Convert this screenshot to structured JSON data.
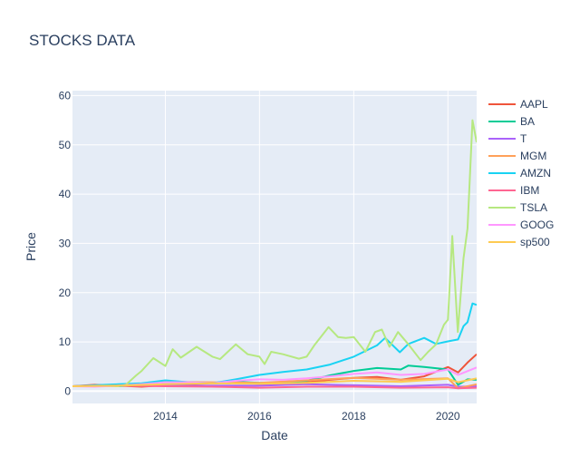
{
  "chart_data": {
    "type": "line",
    "title": "STOCKS DATA",
    "xlabel": "Date",
    "ylabel": "Price",
    "xlim": [
      "2012-01-12",
      "2020-08-11"
    ],
    "ylim": [
      -2.5,
      61
    ],
    "x_ticks": [
      "2014",
      "2016",
      "2018",
      "2020"
    ],
    "y_ticks": [
      0,
      10,
      20,
      30,
      40,
      50,
      60
    ],
    "grid": true,
    "legend_position": "right",
    "background": "#e5ecf6",
    "series": [
      {
        "name": "AAPL",
        "color": "#ef553b",
        "x": [
          "2012-01-12",
          "2012-07-01",
          "2013-01-01",
          "2013-07-01",
          "2014-01-01",
          "2014-07-01",
          "2015-01-01",
          "2015-07-01",
          "2016-01-01",
          "2016-07-01",
          "2017-01-01",
          "2017-07-01",
          "2018-01-01",
          "2018-07-01",
          "2019-01-01",
          "2019-07-01",
          "2020-01-01",
          "2020-03-20",
          "2020-06-01",
          "2020-08-11"
        ],
        "y": [
          1.0,
          1.3,
          1.1,
          0.9,
          1.2,
          1.4,
          1.6,
          1.7,
          1.5,
          1.4,
          1.8,
          2.3,
          2.7,
          2.9,
          2.3,
          3.0,
          4.9,
          3.8,
          5.8,
          7.5
        ]
      },
      {
        "name": "BA",
        "color": "#00cc96",
        "x": [
          "2012-01-12",
          "2012-07-01",
          "2013-01-01",
          "2013-07-01",
          "2014-01-01",
          "2014-07-01",
          "2015-01-01",
          "2015-07-01",
          "2016-01-01",
          "2016-07-01",
          "2017-01-01",
          "2017-07-01",
          "2018-01-01",
          "2018-07-01",
          "2019-01-01",
          "2019-03-01",
          "2019-07-01",
          "2020-01-01",
          "2020-03-20",
          "2020-06-01",
          "2020-08-11"
        ],
        "y": [
          1.0,
          1.0,
          1.0,
          1.3,
          1.8,
          1.7,
          1.7,
          1.9,
          1.7,
          1.8,
          2.1,
          3.2,
          4.1,
          4.7,
          4.4,
          5.2,
          4.9,
          4.4,
          1.3,
          2.4,
          2.3
        ]
      },
      {
        "name": "T",
        "color": "#ab63fa",
        "x": [
          "2012-01-12",
          "2013-01-01",
          "2014-01-01",
          "2015-01-01",
          "2016-01-01",
          "2017-01-01",
          "2018-01-01",
          "2019-01-01",
          "2020-01-01",
          "2020-03-20",
          "2020-08-11"
        ],
        "y": [
          1.0,
          1.1,
          1.1,
          1.1,
          1.1,
          1.4,
          1.2,
          1.0,
          1.3,
          0.9,
          1.0
        ]
      },
      {
        "name": "MGM",
        "color": "#ffa15a",
        "x": [
          "2012-01-12",
          "2013-01-01",
          "2014-01-01",
          "2015-01-01",
          "2016-01-01",
          "2017-01-01",
          "2018-01-01",
          "2019-01-01",
          "2020-01-01",
          "2020-03-20",
          "2020-08-11"
        ],
        "y": [
          1.0,
          1.1,
          1.9,
          1.8,
          1.7,
          2.2,
          2.7,
          2.3,
          2.6,
          0.6,
          1.4
        ]
      },
      {
        "name": "AMZN",
        "color": "#19d3f3",
        "x": [
          "2012-01-12",
          "2012-07-01",
          "2013-01-01",
          "2013-07-01",
          "2014-01-01",
          "2014-07-01",
          "2015-01-01",
          "2015-07-01",
          "2016-01-01",
          "2016-07-01",
          "2017-01-01",
          "2017-07-01",
          "2018-01-01",
          "2018-07-01",
          "2018-09-01",
          "2018-12-24",
          "2019-03-01",
          "2019-07-01",
          "2019-10-01",
          "2020-01-01",
          "2020-03-20",
          "2020-05-01",
          "2020-06-01",
          "2020-07-10",
          "2020-08-11"
        ],
        "y": [
          1.0,
          1.2,
          1.4,
          1.6,
          2.2,
          1.8,
          1.6,
          2.4,
          3.3,
          3.9,
          4.4,
          5.4,
          7.0,
          9.3,
          10.8,
          7.9,
          9.6,
          10.8,
          9.6,
          10.1,
          10.5,
          13.2,
          14.0,
          17.8,
          17.5
        ]
      },
      {
        "name": "IBM",
        "color": "#ff6692",
        "x": [
          "2012-01-12",
          "2013-01-01",
          "2014-01-01",
          "2015-01-01",
          "2016-01-01",
          "2017-01-01",
          "2018-01-01",
          "2019-01-01",
          "2020-01-01",
          "2020-03-20",
          "2020-08-11"
        ],
        "y": [
          1.0,
          1.1,
          1.0,
          0.9,
          0.7,
          0.9,
          0.9,
          0.7,
          0.8,
          0.6,
          0.7
        ]
      },
      {
        "name": "TSLA",
        "color": "#b6e880",
        "x": [
          "2012-01-12",
          "2012-07-01",
          "2013-01-01",
          "2013-03-01",
          "2013-05-20",
          "2013-07-01",
          "2013-09-30",
          "2014-01-01",
          "2014-02-27",
          "2014-05-01",
          "2014-09-01",
          "2015-01-01",
          "2015-03-01",
          "2015-07-01",
          "2015-10-01",
          "2016-01-01",
          "2016-02-10",
          "2016-04-01",
          "2016-07-01",
          "2016-11-01",
          "2017-01-01",
          "2017-03-01",
          "2017-06-20",
          "2017-09-01",
          "2017-11-01",
          "2018-01-01",
          "2018-04-01",
          "2018-06-15",
          "2018-08-07",
          "2018-10-05",
          "2018-12-10",
          "2019-03-01",
          "2019-06-03",
          "2019-08-01",
          "2019-10-01",
          "2019-12-01",
          "2020-01-01",
          "2020-02-04",
          "2020-03-18",
          "2020-05-01",
          "2020-06-01",
          "2020-07-10",
          "2020-08-11"
        ],
        "y": [
          1.0,
          1.0,
          1.0,
          1.3,
          3.2,
          4.1,
          6.7,
          5.1,
          8.5,
          6.8,
          9.0,
          7.0,
          6.5,
          9.5,
          7.5,
          7.0,
          5.5,
          8.0,
          7.5,
          6.6,
          7.0,
          9.3,
          13.0,
          11.0,
          10.8,
          11.0,
          8.0,
          12.0,
          12.5,
          9.0,
          12.0,
          9.5,
          6.3,
          8.0,
          9.5,
          13.5,
          14.5,
          31.5,
          12.0,
          27.0,
          33.0,
          55.0,
          50.5
        ]
      },
      {
        "name": "GOOG",
        "color": "#ff97ff",
        "x": [
          "2012-01-12",
          "2012-07-01",
          "2013-01-01",
          "2013-07-01",
          "2014-01-01",
          "2014-07-01",
          "2015-01-01",
          "2015-07-01",
          "2016-01-01",
          "2016-07-01",
          "2017-01-01",
          "2017-07-01",
          "2018-01-01",
          "2018-07-01",
          "2019-01-01",
          "2019-07-01",
          "2020-01-01",
          "2020-03-20",
          "2020-08-11"
        ],
        "y": [
          1.0,
          0.9,
          1.1,
          1.4,
          1.8,
          1.8,
          1.6,
          2.1,
          2.4,
          2.3,
          2.6,
          3.0,
          3.5,
          3.8,
          3.3,
          3.5,
          4.4,
          3.3,
          4.8
        ]
      },
      {
        "name": "sp500",
        "color": "#fecb52",
        "x": [
          "2012-01-12",
          "2013-01-01",
          "2014-01-01",
          "2015-01-01",
          "2016-01-01",
          "2017-01-01",
          "2018-01-01",
          "2019-01-01",
          "2020-01-01",
          "2020-03-20",
          "2020-08-11"
        ],
        "y": [
          1.0,
          1.1,
          1.4,
          1.6,
          1.5,
          1.7,
          2.1,
          1.9,
          2.5,
          1.8,
          2.6
        ]
      }
    ]
  }
}
